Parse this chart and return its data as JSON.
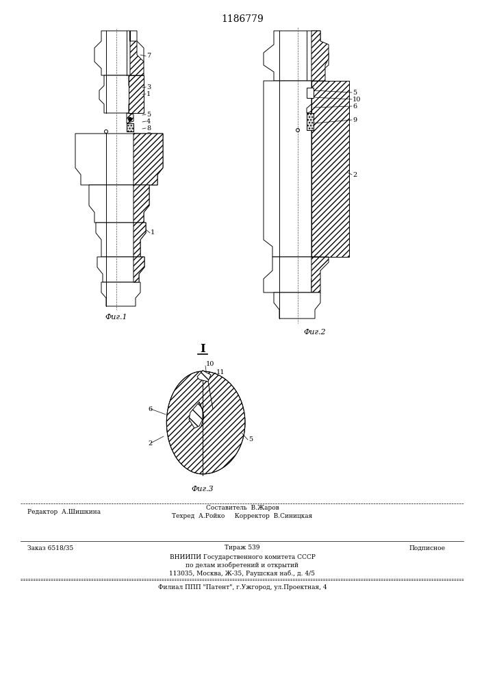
{
  "patent_number": "1186779",
  "bg": "#ffffff",
  "lc": "#000000",
  "fig1_label": "Фиг.1",
  "fig2_label": "Фиг.2",
  "fig3_label": "Фиг.3",
  "footer": {
    "editor": "Редактор  А.Шишкина",
    "composer": "Составитель  В.Жаров",
    "techred": "Техред  А.Ройко",
    "corrector": "Корректор  В.Синицкая",
    "order": "Заказ 6518/35",
    "tirazh": "Тираж 539",
    "podpisnoe": "Подписное",
    "vniipи": "ВНИИПИ Государственного комитета СССР",
    "podela": "по делам изобретений и открытий",
    "address": "113035, Москва, Ж-35, Раушская наб., д. 4/5",
    "filial": "Филиал ППП \"Патент\", г.Ужгород, ул.Проектная, 4"
  }
}
